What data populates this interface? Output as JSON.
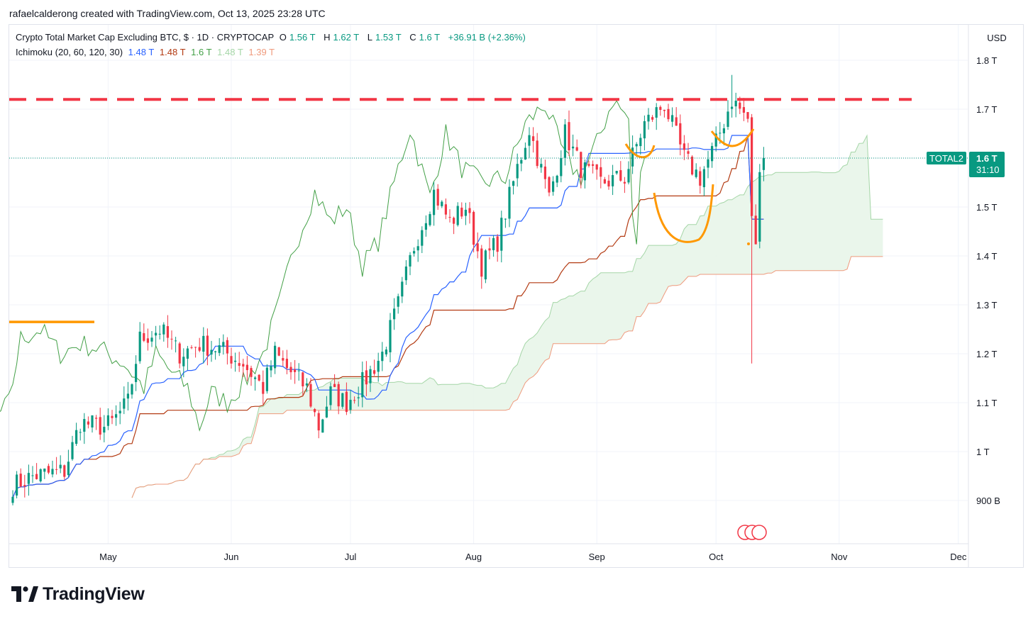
{
  "caption": "rafaelcalderong created with TradingView.com, Oct 13, 2025 23:28 UTC",
  "header": {
    "title": "Crypto Total Market Cap Excluding BTC, $ · 1D · CRYPTOCAP",
    "open_label": "O",
    "open": "1.56 T",
    "high_label": "H",
    "high": "1.62 T",
    "low_label": "L",
    "low": "1.53 T",
    "close_label": "C",
    "close": "1.6 T",
    "change": "+36.91 B (+2.36%)"
  },
  "indicator": {
    "name": "Ichimoku (20, 60, 120, 30)",
    "v1": "1.48 T",
    "v2": "1.48 T",
    "v3": "1.6 T",
    "v4": "1.48 T",
    "v5": "1.39 T"
  },
  "currency": "USD",
  "price_label": {
    "symbol": "TOTAL2",
    "price": "1.6 T",
    "countdown": "31:10"
  },
  "brand": {
    "name": "TradingView",
    "icon": "tradingview-logo-icon"
  },
  "colors": {
    "up": "#089981",
    "down": "#f23645",
    "conversion": "#2962ff",
    "base": "#b33a12",
    "lagging": "#43a047",
    "span_a": "#a5d6a7",
    "span_b": "#ef9a7d",
    "cloud_bull": "#e8f5e9",
    "cloud_bear": "#fde4e1",
    "resistance": "#f23645",
    "drawing": "#ff9800"
  },
  "chart_data": {
    "type": "candlestick",
    "title": "Crypto Total Market Cap Excluding BTC, $ · 1D · CRYPTOCAP",
    "y_unit": "USD",
    "y_ticks": [
      "1.8 T",
      "1.7 T",
      "1.6 T",
      "1.5 T",
      "1.4 T",
      "1.3 T",
      "1.2 T",
      "1.1 T",
      "1 T",
      "900 B"
    ],
    "y_tick_values": [
      1.8,
      1.7,
      1.6,
      1.5,
      1.4,
      1.3,
      1.2,
      1.1,
      1.0,
      0.9
    ],
    "x_ticks": [
      "May",
      "Jun",
      "Jul",
      "Aug",
      "Sep",
      "Oct",
      "Nov",
      "Dec"
    ],
    "ylim": [
      0.82,
      1.85
    ],
    "last_close": 1.6,
    "resistance_level": 1.72,
    "support_line_early": 1.265,
    "grid": true,
    "legend": "top-left",
    "anchors": [
      [
        "2025-04-07",
        0.93
      ],
      [
        "2025-04-12",
        0.95
      ],
      [
        "2025-04-20",
        0.96
      ],
      [
        "2025-04-24",
        1.06
      ],
      [
        "2025-04-30",
        1.05
      ],
      [
        "2025-05-02",
        1.06
      ],
      [
        "2025-05-06",
        1.1
      ],
      [
        "2025-05-09",
        1.23
      ],
      [
        "2025-05-14",
        1.25
      ],
      [
        "2025-05-19",
        1.2
      ],
      [
        "2025-05-24",
        1.22
      ],
      [
        "2025-05-29",
        1.21
      ],
      [
        "2025-06-04",
        1.18
      ],
      [
        "2025-06-09",
        1.13
      ],
      [
        "2025-06-12",
        1.2
      ],
      [
        "2025-06-15",
        1.17
      ],
      [
        "2025-06-20",
        1.13
      ],
      [
        "2025-06-23",
        1.05
      ],
      [
        "2025-06-26",
        1.12
      ],
      [
        "2025-06-30",
        1.1
      ],
      [
        "2025-07-05",
        1.15
      ],
      [
        "2025-07-09",
        1.2
      ],
      [
        "2025-07-13",
        1.3
      ],
      [
        "2025-07-17",
        1.42
      ],
      [
        "2025-07-22",
        1.53
      ],
      [
        "2025-07-26",
        1.47
      ],
      [
        "2025-07-30",
        1.5
      ],
      [
        "2025-08-03",
        1.38
      ],
      [
        "2025-08-07",
        1.43
      ],
      [
        "2025-08-12",
        1.58
      ],
      [
        "2025-08-15",
        1.66
      ],
      [
        "2025-08-20",
        1.52
      ],
      [
        "2025-08-24",
        1.65
      ],
      [
        "2025-08-28",
        1.58
      ],
      [
        "2025-09-02",
        1.55
      ],
      [
        "2025-09-08",
        1.56
      ],
      [
        "2025-09-13",
        1.67
      ],
      [
        "2025-09-18",
        1.71
      ],
      [
        "2025-09-23",
        1.6
      ],
      [
        "2025-09-27",
        1.56
      ],
      [
        "2025-10-01",
        1.63
      ],
      [
        "2025-10-05",
        1.72
      ],
      [
        "2025-10-09",
        1.68
      ],
      [
        "2025-10-10",
        1.47
      ],
      [
        "2025-10-11",
        1.43
      ],
      [
        "2025-10-12",
        1.56
      ],
      [
        "2025-10-13",
        1.6
      ]
    ],
    "series": [
      {
        "name": "Ichimoku (20, 60, 120, 30)",
        "values": [
          1.48,
          1.48,
          1.6,
          1.48,
          1.39
        ]
      }
    ]
  }
}
